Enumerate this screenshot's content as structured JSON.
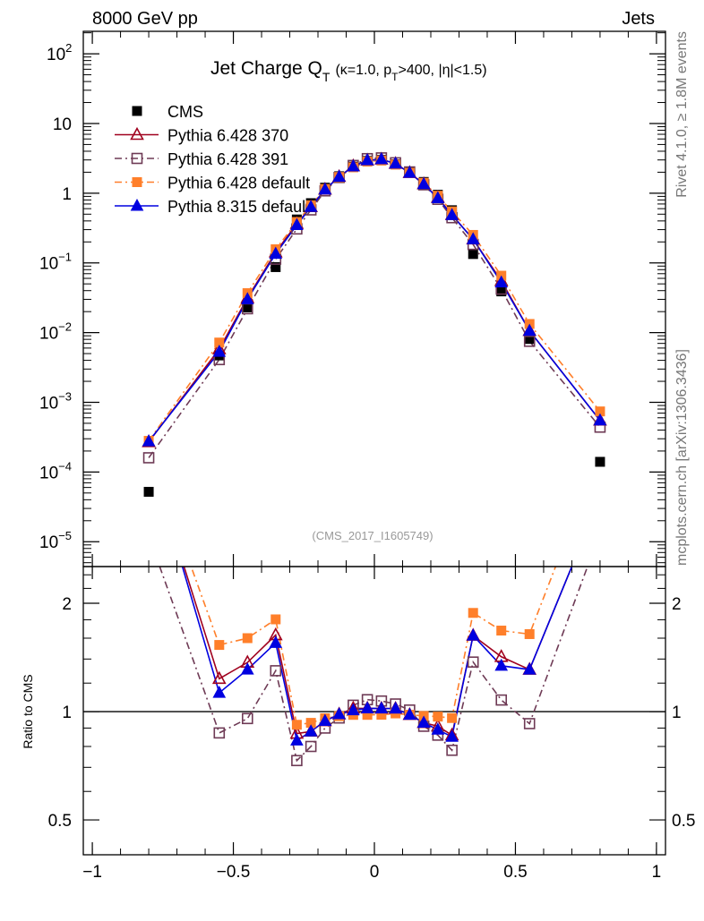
{
  "header": {
    "left": "8000 GeV pp",
    "right": "Jets"
  },
  "side_labels": {
    "top": "Rivet 4.1.0, ≥ 1.8M events",
    "bottom": "mcplots.cern.ch [arXiv:1306.3436]"
  },
  "analysis_id": "(CMS_2017_I1605749)",
  "chart_data": {
    "type": "line",
    "title": {
      "main": "Jet Charge Q",
      "main_sub": "T",
      "cond_a": "(κ=1.0, p",
      "cond_sub": "T",
      "cond_b": ">400, |η|<1.5)"
    },
    "xlabel": "",
    "ylabel": "",
    "ratio_ylabel": "Ratio to CMS",
    "xlim": [
      -1.032,
      1.032
    ],
    "ylim": [
      4.4e-06,
      210
    ],
    "yscale": "log",
    "ratio_ylim": [
      0.4,
      2.53
    ],
    "ratio_yscale": "log",
    "legend_position": "top-left",
    "x_ticks": [
      {
        "v": -1,
        "label": "−1"
      },
      {
        "v": -0.5,
        "label": "−0.5"
      },
      {
        "v": 0,
        "label": "0"
      },
      {
        "v": 0.5,
        "label": "0.5"
      },
      {
        "v": 1,
        "label": "1"
      }
    ],
    "y_ticks": [
      {
        "v": 1e-05,
        "base": "10",
        "exp": "−5"
      },
      {
        "v": 0.0001,
        "base": "10",
        "exp": "−4"
      },
      {
        "v": 0.001,
        "base": "10",
        "exp": "−3"
      },
      {
        "v": 0.01,
        "base": "10",
        "exp": "−2"
      },
      {
        "v": 0.1,
        "base": "10",
        "exp": "−1"
      },
      {
        "v": 1,
        "base": "1",
        "exp": ""
      },
      {
        "v": 10,
        "base": "10",
        "exp": ""
      },
      {
        "v": 100,
        "base": "10",
        "exp": "2"
      }
    ],
    "ratio_ticks": [
      {
        "v": 0.5,
        "label": "0.5"
      },
      {
        "v": 1,
        "label": "1"
      },
      {
        "v": 2,
        "label": "2"
      }
    ],
    "x": [
      -0.8,
      -0.55,
      -0.45,
      -0.35,
      -0.275,
      -0.225,
      -0.175,
      -0.125,
      -0.075,
      -0.025,
      0.025,
      0.075,
      0.125,
      0.175,
      0.225,
      0.275,
      0.35,
      0.45,
      0.55,
      0.8
    ],
    "reference": {
      "name": "CMS",
      "color": "#000000",
      "marker": "filled-square",
      "values": [
        5.2e-05,
        0.0047,
        0.023,
        0.087,
        0.42,
        0.72,
        1.2,
        1.75,
        2.4,
        2.9,
        3.0,
        2.6,
        2.0,
        1.45,
        0.95,
        0.57,
        0.134,
        0.039,
        0.0081,
        0.00014
      ]
    },
    "series": [
      {
        "name": "Pythia 6.428 370",
        "color": "#a0001e",
        "marker": "open-triangle",
        "line": "solid",
        "values": [
          0.00027,
          0.0058,
          0.0315,
          0.142,
          0.365,
          0.634,
          1.13,
          1.72,
          2.45,
          2.96,
          3.06,
          2.65,
          1.96,
          1.35,
          0.865,
          0.49,
          0.218,
          0.0554,
          0.0106,
          0.00055
        ]
      },
      {
        "name": "Pythia 6.428 391",
        "color": "#6e3a55",
        "marker": "open-square",
        "line": "dashdot",
        "values": [
          0.00016,
          0.0041,
          0.022,
          0.113,
          0.307,
          0.576,
          1.08,
          1.68,
          2.5,
          3.13,
          3.21,
          2.73,
          2.02,
          1.32,
          0.817,
          0.445,
          0.184,
          0.042,
          0.0075,
          0.00044
        ]
      },
      {
        "name": "Pythia 6.428 default",
        "color": "#ff7f2a",
        "marker": "filled-square",
        "line": "dashdot",
        "values": [
          0.00028,
          0.0072,
          0.0368,
          0.157,
          0.386,
          0.67,
          1.15,
          1.7,
          2.35,
          2.84,
          2.94,
          2.57,
          1.96,
          1.41,
          0.92,
          0.547,
          0.252,
          0.0655,
          0.0133,
          0.00074
        ]
      },
      {
        "name": "Pythia 8.315 default",
        "color": "#0000e0",
        "marker": "filled-triangle",
        "line": "solid",
        "values": [
          0.000275,
          0.0053,
          0.0301,
          0.135,
          0.349,
          0.634,
          1.13,
          1.72,
          2.42,
          2.96,
          3.06,
          2.65,
          1.96,
          1.35,
          0.846,
          0.485,
          0.218,
          0.0523,
          0.0106,
          0.00055
        ]
      }
    ]
  }
}
